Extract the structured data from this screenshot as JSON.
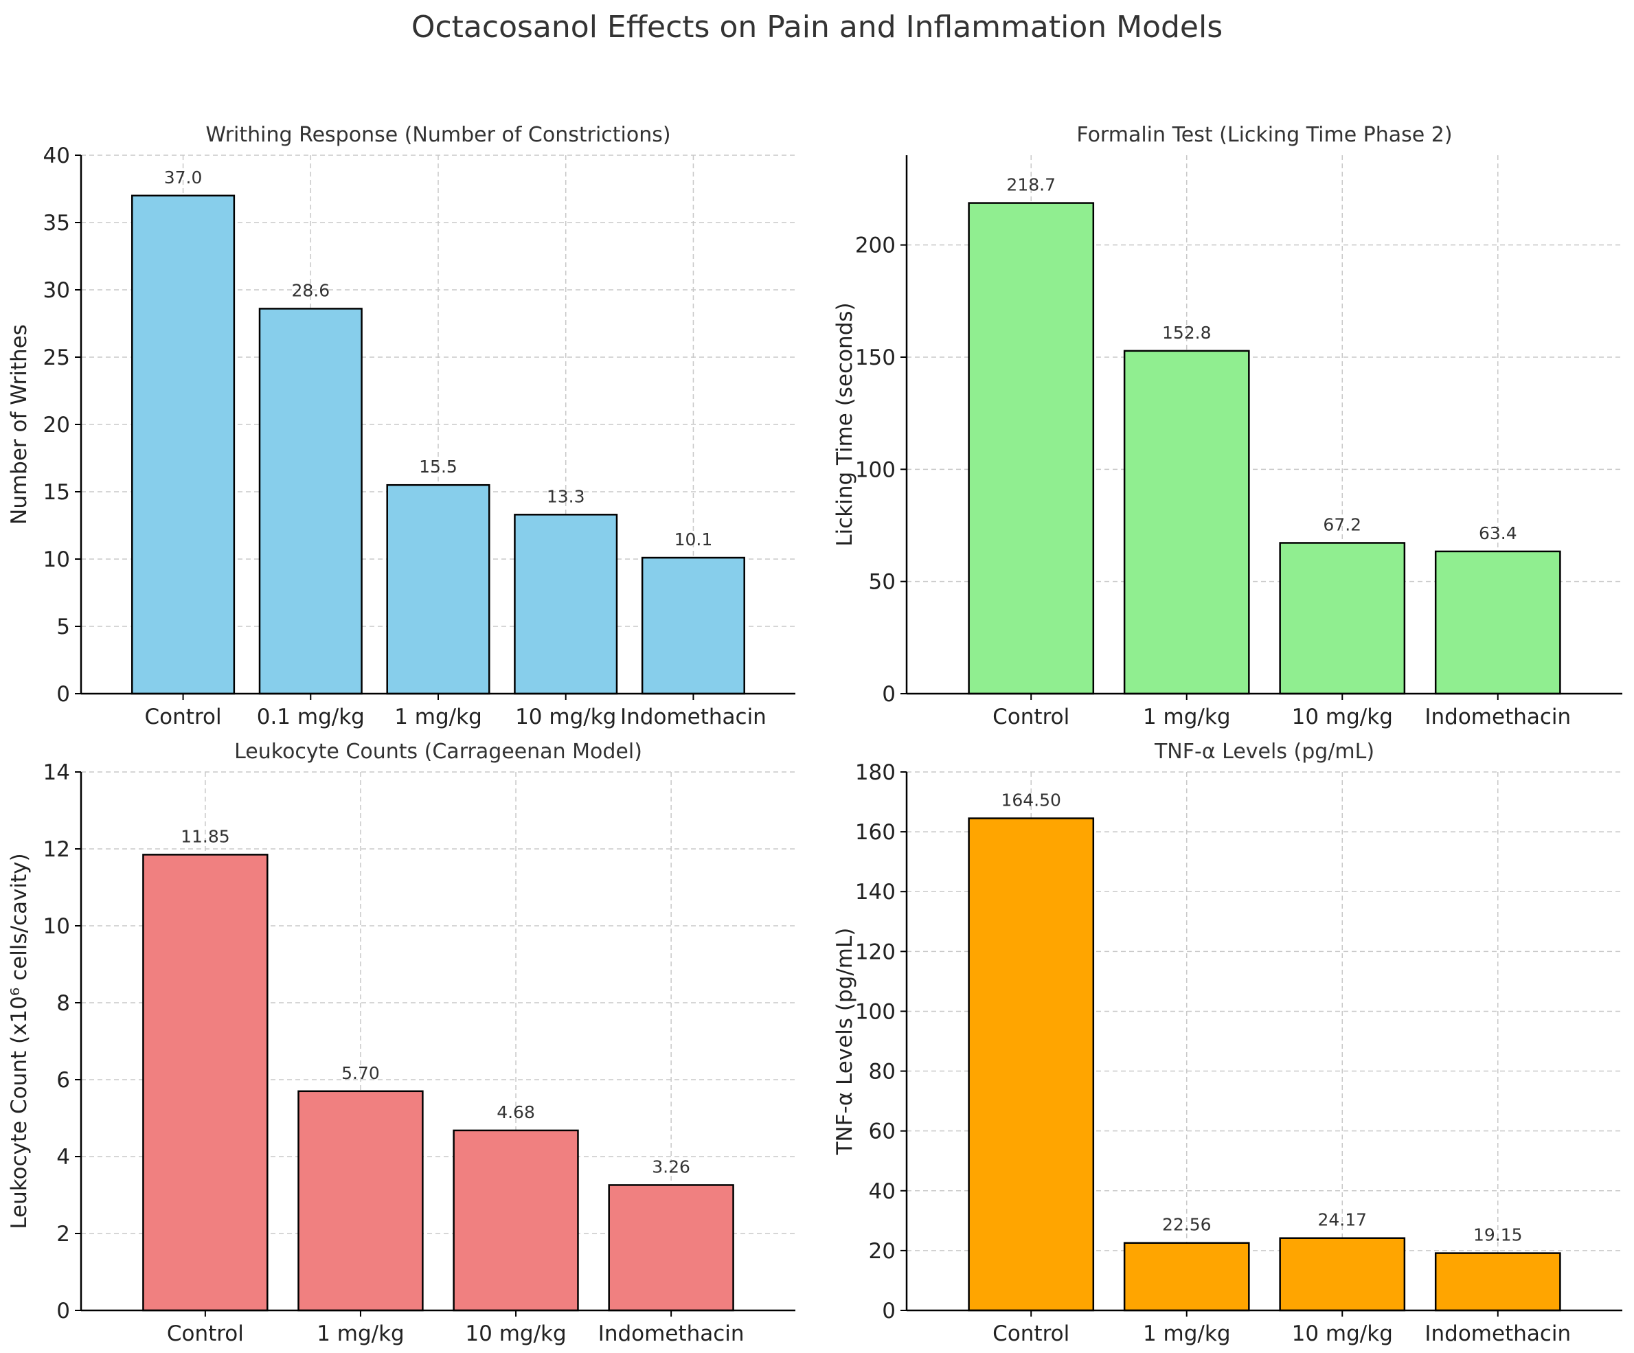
{
  "figure_title": "Octacosanol Effects on Pain and Inflammation Models",
  "chart_data": [
    {
      "type": "bar",
      "title": "Writhing Response (Number of Constrictions)",
      "xlabel": "",
      "ylabel": "Number of Writhes",
      "categories": [
        "Control",
        "0.1 mg/kg",
        "1 mg/kg",
        "10 mg/kg",
        "Indomethacin"
      ],
      "values": [
        37.0,
        28.6,
        15.5,
        13.3,
        10.1
      ],
      "value_labels": [
        "37.0",
        "28.6",
        "15.5",
        "13.3",
        "10.1"
      ],
      "ylim": [
        0,
        40
      ],
      "yticks": [
        0,
        5,
        10,
        15,
        20,
        25,
        30,
        35,
        40
      ],
      "ytick_labels": [
        "0",
        "5",
        "10",
        "15",
        "20",
        "25",
        "30",
        "35",
        "40"
      ],
      "color": "#87CEEB",
      "grid": true
    },
    {
      "type": "bar",
      "title": "Formalin Test (Licking Time Phase 2)",
      "xlabel": "",
      "ylabel": "Licking Time (seconds)",
      "categories": [
        "Control",
        "1 mg/kg",
        "10 mg/kg",
        "Indomethacin"
      ],
      "values": [
        218.7,
        152.8,
        67.2,
        63.4
      ],
      "value_labels": [
        "218.7",
        "152.8",
        "67.2",
        "63.4"
      ],
      "ylim": [
        0,
        240
      ],
      "yticks": [
        0,
        50,
        100,
        150,
        200
      ],
      "ytick_labels": [
        "0",
        "50",
        "100",
        "150",
        "200"
      ],
      "color": "#90EE90",
      "grid": true
    },
    {
      "type": "bar",
      "title": "Leukocyte Counts (Carrageenan Model)",
      "xlabel": "",
      "ylabel": "Leukocyte Count (x10⁶ cells/cavity)",
      "categories": [
        "Control",
        "1 mg/kg",
        "10 mg/kg",
        "Indomethacin"
      ],
      "values": [
        11.85,
        5.7,
        4.68,
        3.26
      ],
      "value_labels": [
        "11.85",
        "5.70",
        "4.68",
        "3.26"
      ],
      "ylim": [
        0,
        14
      ],
      "yticks": [
        0,
        2,
        4,
        6,
        8,
        10,
        12,
        14
      ],
      "ytick_labels": [
        "0",
        "2",
        "4",
        "6",
        "8",
        "10",
        "12",
        "14"
      ],
      "color": "#F08080",
      "grid": true
    },
    {
      "type": "bar",
      "title": "TNF-α Levels (pg/mL)",
      "xlabel": "",
      "ylabel": "TNF-α Levels (pg/mL)",
      "categories": [
        "Control",
        "1 mg/kg",
        "10 mg/kg",
        "Indomethacin"
      ],
      "values": [
        164.5,
        22.56,
        24.17,
        19.15
      ],
      "value_labels": [
        "164.50",
        "22.56",
        "24.17",
        "19.15"
      ],
      "ylim": [
        0,
        180
      ],
      "yticks": [
        0,
        20,
        40,
        60,
        80,
        100,
        120,
        140,
        160,
        180
      ],
      "ytick_labels": [
        "0",
        "20",
        "40",
        "60",
        "80",
        "100",
        "120",
        "140",
        "160",
        "180"
      ],
      "color": "#FFA500",
      "grid": true
    }
  ]
}
